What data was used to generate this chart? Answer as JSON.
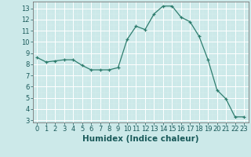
{
  "x": [
    0,
    1,
    2,
    3,
    4,
    5,
    6,
    7,
    8,
    9,
    10,
    11,
    12,
    13,
    14,
    15,
    16,
    17,
    18,
    19,
    20,
    21,
    22,
    23
  ],
  "y": [
    8.6,
    8.2,
    8.3,
    8.4,
    8.4,
    7.9,
    7.5,
    7.5,
    7.5,
    7.7,
    10.2,
    11.4,
    11.1,
    12.5,
    13.2,
    13.2,
    12.2,
    11.8,
    10.5,
    8.4,
    5.7,
    4.9,
    3.3,
    3.3
  ],
  "xlabel": "Humidex (Indice chaleur)",
  "bg_color": "#cce9e9",
  "grid_color": "#ffffff",
  "grid_minor_color": "#ddf2f2",
  "line_color": "#2e7d6e",
  "marker_color": "#2e7d6e",
  "ylim": [
    2.8,
    13.6
  ],
  "xlim": [
    -0.5,
    23.5
  ],
  "yticks": [
    3,
    4,
    5,
    6,
    7,
    8,
    9,
    10,
    11,
    12,
    13
  ],
  "xticks": [
    0,
    1,
    2,
    3,
    4,
    5,
    6,
    7,
    8,
    9,
    10,
    11,
    12,
    13,
    14,
    15,
    16,
    17,
    18,
    19,
    20,
    21,
    22,
    23
  ],
  "xlabel_fontsize": 7.5,
  "tick_fontsize": 6
}
